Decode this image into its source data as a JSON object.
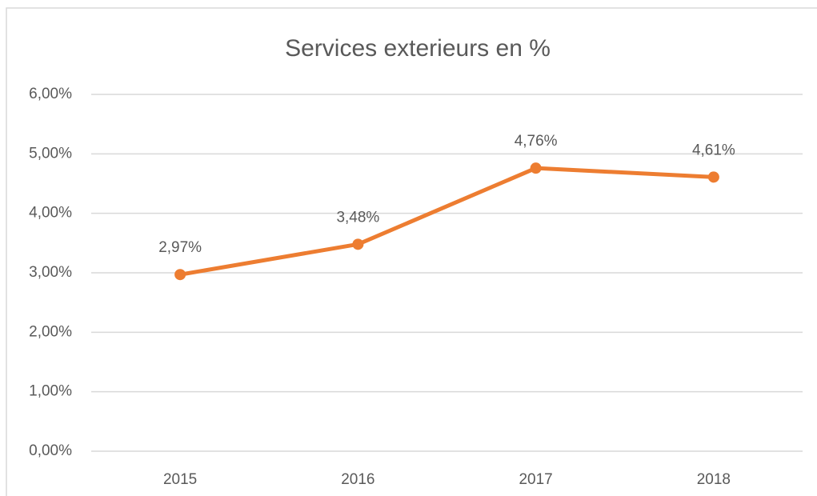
{
  "chart_data": {
    "type": "line",
    "title": "Services exterieurs en %",
    "categories": [
      "2015",
      "2016",
      "2017",
      "2018"
    ],
    "series": [
      {
        "color": "#ed7d31",
        "values": [
          2.97,
          3.48,
          4.76,
          4.61
        ],
        "value_labels": [
          "2,97%",
          "3,48%",
          "4,76%",
          "4,61%"
        ]
      }
    ],
    "ylim": [
      0,
      6
    ],
    "yticks": [
      {
        "value": 0,
        "label": "0,00%"
      },
      {
        "value": 1,
        "label": "1,00%"
      },
      {
        "value": 2,
        "label": "2,00%"
      },
      {
        "value": 3,
        "label": "3,00%"
      },
      {
        "value": 4,
        "label": "4,00%"
      },
      {
        "value": 5,
        "label": "5,00%"
      },
      {
        "value": 6,
        "label": "6,00%"
      }
    ],
    "grid": true
  }
}
